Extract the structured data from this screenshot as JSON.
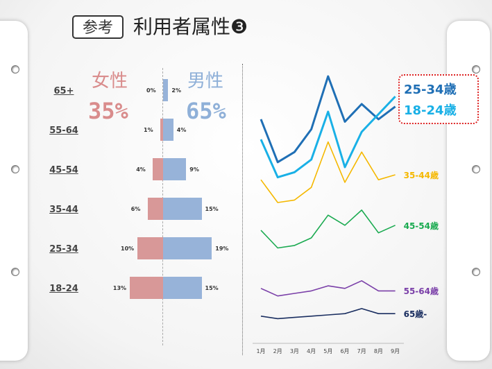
{
  "header": {
    "tag": "参考",
    "title": "利用者属性❸"
  },
  "gender": {
    "female_label": "女性",
    "female_pct": "35%",
    "female_color": "#d98c8c",
    "male_label": "男性",
    "male_pct": "65%",
    "male_color": "#8fb0d8"
  },
  "chart_data": [
    {
      "type": "bar",
      "orientation": "horizontal-butterfly",
      "categories": [
        "65+",
        "55-64",
        "45-54",
        "35-44",
        "25-34",
        "18-24"
      ],
      "series": [
        {
          "values": [
            0,
            1,
            4,
            6,
            10,
            13
          ],
          "labels": [
            "0%",
            "1%",
            "4%",
            "6%",
            "10%",
            "13%"
          ],
          "color": "#d89898"
        },
        {
          "values": [
            2,
            4,
            9,
            15,
            19,
            15
          ],
          "labels": [
            "2%",
            "4%",
            "9%",
            "15%",
            "19%",
            "15%"
          ],
          "color": "#97b3d9"
        }
      ]
    },
    {
      "type": "line",
      "x": [
        "1月",
        "2月",
        "3月",
        "4月",
        "5月",
        "6月",
        "7月",
        "8月",
        "9月"
      ],
      "series": [
        {
          "name": "25-34歳",
          "color": "#1f6fb5",
          "values": [
            83,
            66,
            70,
            79,
            100,
            82,
            89,
            83,
            88
          ]
        },
        {
          "name": "18-24歳",
          "color": "#19b0e6",
          "values": [
            75,
            60,
            62,
            67,
            86,
            64,
            78,
            85,
            92
          ]
        },
        {
          "name": "35-44歳",
          "color": "#f5b800",
          "values": [
            59,
            50,
            51,
            56,
            74,
            58,
            70,
            59,
            61
          ]
        },
        {
          "name": "45-54歳",
          "color": "#1aaa50",
          "values": [
            39,
            32,
            33,
            36,
            45,
            41,
            47,
            38,
            41
          ]
        },
        {
          "name": "55-64歳",
          "color": "#7a3fa8",
          "values": [
            16,
            13,
            14,
            15,
            17,
            16,
            19,
            15,
            15
          ]
        },
        {
          "name": "65歳-",
          "color": "#1a2e60",
          "values": [
            5,
            4,
            4.5,
            5,
            5.5,
            6,
            8,
            6,
            6
          ]
        }
      ],
      "legend_highlight": [
        "25-34歳",
        "18-24歳"
      ]
    }
  ]
}
